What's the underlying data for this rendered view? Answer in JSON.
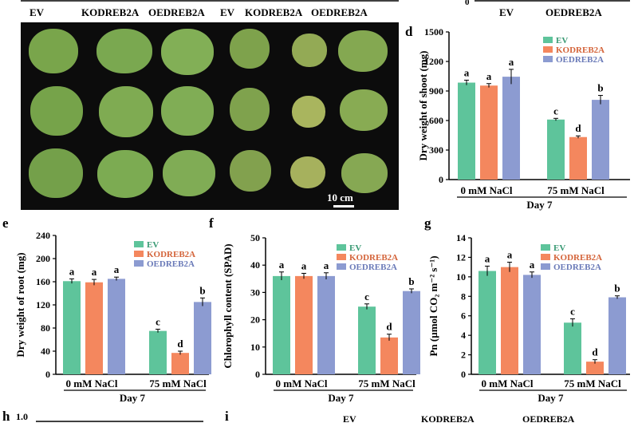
{
  "top_labels": [
    "EV",
    "KODREB2A",
    "OEDREB2A",
    "EV",
    "KODREB2A",
    "OEDREB2A",
    "EV",
    "OEDREB2A"
  ],
  "top_zero": "0",
  "photo": {
    "scale_label": "10 cm"
  },
  "panel_labels": {
    "d": "d",
    "e": "e",
    "f": "f",
    "g": "g",
    "h": "h",
    "i": "i",
    "h_tick": "1.0"
  },
  "panel_i_labels": [
    "EV",
    "KODREB2A",
    "OEDREB2A"
  ],
  "colors": {
    "EV": "#5ec49b",
    "KODREB2A": "#f4875e",
    "OEDREB2A": "#8c9bd1"
  },
  "chart_data": [
    {
      "id": "d",
      "type": "bar",
      "ylabel": "Dry weight of shoot (mg)",
      "xlabel": "Day 7",
      "categories": [
        "0 mM NaCl",
        "75 mM NaCl"
      ],
      "ylim": [
        0,
        1500
      ],
      "yticks": [
        0,
        300,
        600,
        900,
        1200,
        1500
      ],
      "legend": "top-left",
      "series": [
        {
          "name": "EV",
          "values": [
            985,
            610
          ],
          "errors": [
            25,
            12
          ],
          "letters": [
            "a",
            "c"
          ]
        },
        {
          "name": "KODREB2A",
          "values": [
            955,
            432
          ],
          "errors": [
            20,
            12
          ],
          "letters": [
            "a",
            "d"
          ]
        },
        {
          "name": "OEDREB2A",
          "values": [
            1045,
            810
          ],
          "errors": [
            75,
            45
          ],
          "letters": [
            "a",
            "b"
          ]
        }
      ]
    },
    {
      "id": "e",
      "type": "bar",
      "ylabel": "Dry weight of root (mg)",
      "xlabel": "Day 7",
      "categories": [
        "0 mM NaCl",
        "75 mM NaCl"
      ],
      "ylim": [
        0,
        240
      ],
      "yticks": [
        0,
        40,
        80,
        120,
        160,
        200,
        240
      ],
      "legend": "top-right",
      "series": [
        {
          "name": "EV",
          "values": [
            161,
            75
          ],
          "errors": [
            4,
            3
          ],
          "letters": [
            "a",
            "c"
          ]
        },
        {
          "name": "KODREB2A",
          "values": [
            159,
            37
          ],
          "errors": [
            5,
            3
          ],
          "letters": [
            "a",
            "d"
          ]
        },
        {
          "name": "OEDREB2A",
          "values": [
            165,
            125
          ],
          "errors": [
            3,
            7
          ],
          "letters": [
            "a",
            "b"
          ]
        }
      ]
    },
    {
      "id": "f",
      "type": "bar",
      "ylabel": "Chlorophyll content (SPAD)",
      "xlabel": "Day 7",
      "categories": [
        "0 mM NaCl",
        "75 mM NaCl"
      ],
      "ylim": [
        0,
        50
      ],
      "yticks": [
        0,
        10,
        20,
        30,
        40,
        50
      ],
      "legend": "top-right",
      "series": [
        {
          "name": "EV",
          "values": [
            36,
            24.8
          ],
          "errors": [
            1.5,
            1
          ],
          "letters": [
            "a",
            "c"
          ]
        },
        {
          "name": "KODREB2A",
          "values": [
            36,
            13.5
          ],
          "errors": [
            1,
            1.2
          ],
          "letters": [
            "a",
            "d"
          ]
        },
        {
          "name": "OEDREB2A",
          "values": [
            36,
            30.5
          ],
          "errors": [
            1.2,
            0.8
          ],
          "letters": [
            "a",
            "b"
          ]
        }
      ]
    },
    {
      "id": "g",
      "type": "bar",
      "ylabel": "Pn (µmol CO₂ m⁻² s⁻¹)",
      "xlabel": "Day 7",
      "categories": [
        "0 mM NaCl",
        "75 mM NaCl"
      ],
      "ylim": [
        0,
        14
      ],
      "yticks": [
        0,
        2,
        4,
        6,
        8,
        10,
        12,
        14
      ],
      "legend": "top-right",
      "series": [
        {
          "name": "EV",
          "values": [
            10.6,
            5.3
          ],
          "errors": [
            0.5,
            0.4
          ],
          "letters": [
            "a",
            "c"
          ]
        },
        {
          "name": "KODREB2A",
          "values": [
            11.0,
            1.3
          ],
          "errors": [
            0.5,
            0.2
          ],
          "letters": [
            "a",
            "d"
          ]
        },
        {
          "name": "OEDREB2A",
          "values": [
            10.2,
            7.9
          ],
          "errors": [
            0.3,
            0.15
          ],
          "letters": [
            "a",
            "b"
          ]
        }
      ]
    }
  ]
}
